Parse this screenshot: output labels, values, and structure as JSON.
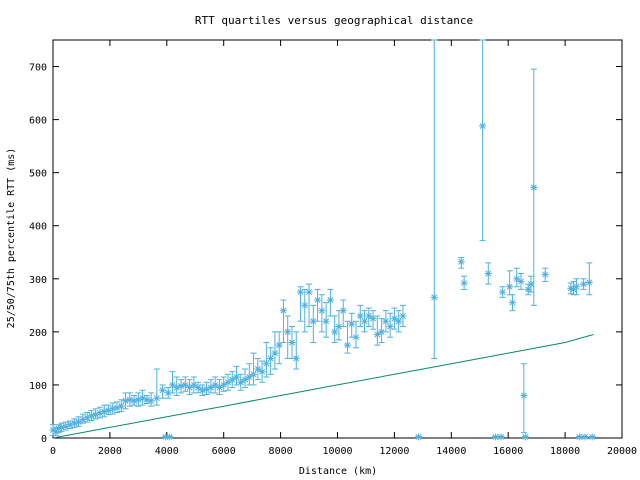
{
  "chart_data": {
    "type": "scatter",
    "title": "RTT quartiles versus geographical distance",
    "xlabel": "Distance (km)",
    "ylabel": "25/50/75th percentile RTT (ms)",
    "xlim": [
      0,
      20000
    ],
    "ylim": [
      0,
      750
    ],
    "xticks": [
      0,
      2000,
      4000,
      6000,
      8000,
      10000,
      12000,
      14000,
      16000,
      18000,
      20000
    ],
    "yticks": [
      0,
      100,
      200,
      300,
      400,
      500,
      600,
      700
    ],
    "grid": false,
    "legend": "none",
    "colors": {
      "points": "#4fb0df",
      "line": "#0a8a6a"
    },
    "series": [
      {
        "type": "errorbar",
        "points": [
          [
            0,
            15,
            5,
            25
          ],
          [
            100,
            12,
            5,
            20
          ],
          [
            200,
            18,
            10,
            25
          ],
          [
            300,
            20,
            12,
            28
          ],
          [
            450,
            22,
            15,
            30
          ],
          [
            600,
            25,
            18,
            32
          ],
          [
            750,
            28,
            20,
            36
          ],
          [
            900,
            30,
            22,
            40
          ],
          [
            1050,
            35,
            28,
            45
          ],
          [
            1200,
            38,
            30,
            48
          ],
          [
            1350,
            42,
            33,
            52
          ],
          [
            1500,
            44,
            36,
            55
          ],
          [
            1650,
            47,
            38,
            58
          ],
          [
            1800,
            50,
            40,
            62
          ],
          [
            1950,
            52,
            44,
            62
          ],
          [
            2100,
            55,
            45,
            66
          ],
          [
            2250,
            57,
            48,
            68
          ],
          [
            2400,
            60,
            50,
            72
          ],
          [
            2550,
            70,
            55,
            85
          ],
          [
            2700,
            72,
            60,
            85
          ],
          [
            2850,
            70,
            62,
            80
          ],
          [
            3000,
            72,
            60,
            85
          ],
          [
            3150,
            75,
            62,
            90
          ],
          [
            3300,
            72,
            65,
            80
          ],
          [
            3450,
            70,
            60,
            85
          ],
          [
            3650,
            75,
            62,
            130
          ],
          [
            3850,
            90,
            75,
            100
          ],
          [
            4050,
            85,
            75,
            95
          ],
          [
            4200,
            100,
            85,
            125
          ],
          [
            4350,
            95,
            80,
            115
          ],
          [
            4500,
            98,
            85,
            110
          ],
          [
            4650,
            100,
            88,
            115
          ],
          [
            4800,
            95,
            82,
            110
          ],
          [
            4950,
            100,
            85,
            115
          ],
          [
            5100,
            95,
            85,
            105
          ],
          [
            5250,
            90,
            80,
            100
          ],
          [
            5400,
            92,
            82,
            105
          ],
          [
            5550,
            95,
            85,
            110
          ],
          [
            5700,
            100,
            85,
            115
          ],
          [
            5850,
            95,
            82,
            110
          ],
          [
            6000,
            100,
            88,
            115
          ],
          [
            6150,
            105,
            90,
            120
          ],
          [
            6300,
            110,
            95,
            125
          ],
          [
            6450,
            115,
            100,
            135
          ],
          [
            6600,
            105,
            90,
            120
          ],
          [
            6750,
            110,
            95,
            130
          ],
          [
            6900,
            115,
            100,
            140
          ],
          [
            7050,
            120,
            100,
            160
          ],
          [
            7200,
            130,
            110,
            150
          ],
          [
            7350,
            125,
            105,
            145
          ],
          [
            7500,
            140,
            115,
            180
          ],
          [
            7650,
            150,
            120,
            170
          ],
          [
            7800,
            160,
            130,
            200
          ],
          [
            7950,
            175,
            140,
            200
          ],
          [
            8100,
            240,
            180,
            260
          ],
          [
            8250,
            200,
            150,
            230
          ],
          [
            8400,
            180,
            150,
            210
          ],
          [
            8550,
            150,
            130,
            200
          ],
          [
            8700,
            275,
            220,
            285
          ],
          [
            8850,
            250,
            200,
            280
          ],
          [
            9000,
            275,
            210,
            290
          ],
          [
            9150,
            220,
            180,
            250
          ],
          [
            9300,
            260,
            220,
            280
          ],
          [
            9450,
            240,
            200,
            270
          ],
          [
            9600,
            220,
            190,
            255
          ],
          [
            9750,
            260,
            230,
            280
          ],
          [
            9900,
            200,
            180,
            230
          ],
          [
            10050,
            210,
            185,
            240
          ],
          [
            10200,
            240,
            210,
            260
          ],
          [
            10350,
            175,
            160,
            220
          ],
          [
            10500,
            215,
            190,
            235
          ],
          [
            10650,
            190,
            170,
            220
          ],
          [
            10800,
            230,
            210,
            250
          ],
          [
            10950,
            220,
            200,
            240
          ],
          [
            11100,
            230,
            210,
            245
          ],
          [
            11250,
            225,
            205,
            240
          ],
          [
            11400,
            195,
            175,
            230
          ],
          [
            11550,
            200,
            180,
            225
          ],
          [
            11700,
            220,
            200,
            240
          ],
          [
            11850,
            210,
            190,
            235
          ],
          [
            12000,
            225,
            205,
            245
          ],
          [
            12150,
            220,
            200,
            240
          ],
          [
            12300,
            230,
            210,
            250
          ],
          [
            13400,
            265,
            150,
            750
          ],
          [
            14350,
            332,
            320,
            340
          ],
          [
            14450,
            292,
            280,
            305
          ],
          [
            15100,
            588,
            372,
            750
          ],
          [
            15300,
            310,
            290,
            330
          ],
          [
            15800,
            275,
            265,
            285
          ],
          [
            16050,
            285,
            270,
            315
          ],
          [
            16150,
            255,
            240,
            270
          ],
          [
            16300,
            300,
            285,
            320
          ],
          [
            16450,
            295,
            280,
            310
          ],
          [
            16550,
            80,
            10,
            140
          ],
          [
            16700,
            280,
            270,
            290
          ],
          [
            16800,
            290,
            275,
            305
          ],
          [
            16900,
            472,
            250,
            695
          ],
          [
            17300,
            308,
            295,
            320
          ],
          [
            18200,
            282,
            272,
            292
          ],
          [
            18300,
            280,
            270,
            295
          ],
          [
            18400,
            285,
            270,
            300
          ],
          [
            18650,
            290,
            280,
            300
          ],
          [
            18850,
            293,
            270,
            330
          ],
          [
            3950,
            2,
            0,
            3
          ],
          [
            4100,
            2,
            0,
            3
          ],
          [
            12850,
            2,
            0,
            3
          ],
          [
            15550,
            2,
            0,
            3
          ],
          [
            15750,
            2,
            0,
            3
          ],
          [
            16600,
            2,
            0,
            3
          ],
          [
            18500,
            2,
            0,
            3
          ],
          [
            18700,
            2,
            0,
            3
          ],
          [
            18950,
            2,
            0,
            3
          ]
        ]
      },
      {
        "type": "line",
        "x": [
          0,
          2000,
          4000,
          6000,
          8000,
          10000,
          12000,
          14000,
          16000,
          18000,
          19000
        ],
        "y": [
          0,
          20,
          40,
          60,
          80,
          100,
          120,
          140,
          160,
          180,
          195
        ]
      }
    ]
  }
}
